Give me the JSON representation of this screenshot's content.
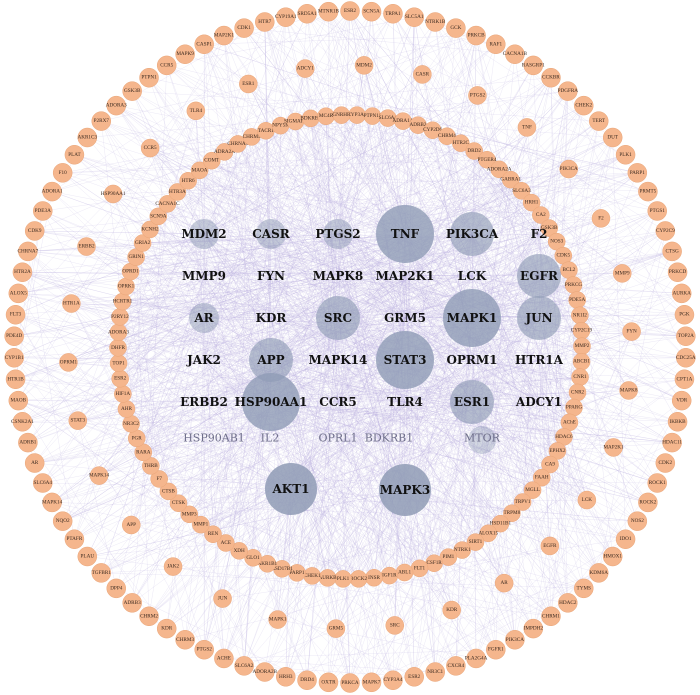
{
  "outer_ring": [
    "ESR2",
    "SCN5A",
    "TRPA1",
    "SLC5A1",
    "NTRK1B",
    "GCK",
    "PRKCB",
    "RAF1",
    "CACNA1B",
    "RASGRP1",
    "CCKBR",
    "PDGFRA",
    "CHEK2",
    "TERT",
    "DUT",
    "PLK1",
    "PARP1",
    "PRMT5",
    "PTGS1",
    "CYP2C9",
    "CTSG",
    "PRKCD",
    "AURKA",
    "PGK",
    "TOP2A",
    "CDC25A",
    "CPT1A",
    "VDR",
    "IKBKB",
    "HDAC11",
    "CDK2",
    "ROCK1",
    "ROCK2",
    "NOS2",
    "IDO1",
    "HMOX1",
    "KDM6A",
    "TYMS",
    "HDAC2",
    "CHRM1",
    "IMPDH2",
    "PIK3CA",
    "FGFR1",
    "PLA2G4A",
    "CXCR4",
    "NR3C1",
    "ESR2",
    "CYP3A4",
    "MAPK7",
    "PRKCA",
    "OXTR",
    "DRD4",
    "HRH3",
    "ADORA2B",
    "SLC6A2",
    "ACHE",
    "PTGS2",
    "CHRM3",
    "KDR",
    "CHRM2",
    "ADRB3",
    "DPP4",
    "TGFBR1",
    "PLAU",
    "PTAFR",
    "NQO2",
    "MAPK14",
    "SLC6A4",
    "AR",
    "ADRB1",
    "CSNK2A1",
    "MAOB",
    "HTR1B",
    "CYP1B1",
    "PDE4D",
    "FLT3",
    "ALOX5",
    "HTR2A",
    "CHRNA7",
    "CDK9",
    "PDE3A",
    "ADORA1",
    "F10",
    "PLAT",
    "AKR1C3",
    "P2RX7",
    "ADORA3",
    "GSK3B",
    "PTPN1",
    "CCR5",
    "MAPK9",
    "CASP1",
    "MAP2K1",
    "CDK1",
    "HTR7",
    "CYP19A1",
    "SRD5A1",
    "MTNR1B"
  ],
  "middle_ring": [
    "MDM2",
    "CASR",
    "PTGS2",
    "TNF",
    "PIK3CA",
    "F2",
    "MMP9",
    "FYN",
    "MAPK8",
    "MAP2K1",
    "LCK",
    "EGFR",
    "AR",
    "KDR",
    "SRC",
    "GRM5",
    "MAPK1",
    "JUN",
    "JAK2",
    "APP",
    "MAPK14",
    "STAT3",
    "OPRM1",
    "HTR1A",
    "ERBB2",
    "HSP90AA1",
    "CCR5",
    "TLR4",
    "ESR1",
    "ADCY1"
  ],
  "inner_ring": [
    "CYP3A4",
    "PTPN11",
    "SLC6A4",
    "ADRA1A",
    "ADRB2",
    "CYP2D6",
    "CHRM4",
    "HTR2C",
    "DRD2",
    "PTGER4",
    "ADORA2A",
    "GABRA1",
    "SLC6A3",
    "HRH1",
    "CA2",
    "GSK3B",
    "NOS3",
    "CDK5",
    "BCL2",
    "PRKCG",
    "PDE5A",
    "NR1I2",
    "CYP2C19",
    "MMP2",
    "ABCB1",
    "CNR1",
    "CNR2",
    "PPARG",
    "AChE",
    "HDAC6",
    "EPHX2",
    "CA9",
    "FAAH",
    "MGLL",
    "TRPV1",
    "TRPM8",
    "HSD11B1",
    "ALOX15",
    "SIRT1",
    "NTRK1",
    "PIM1",
    "CSF1R",
    "FLT1",
    "ABL1",
    "IGF1R",
    "INSR",
    "ROCK2",
    "PLK1",
    "AURKB",
    "CHEK1",
    "PARP1",
    "HSD17B1",
    "AKR1B1",
    "GLO1",
    "XDH",
    "ACE",
    "REN",
    "MMP1",
    "MMP3",
    "CTSK",
    "CTSB",
    "F7",
    "THRB",
    "RARA",
    "PGR",
    "NR3C2",
    "AHR",
    "HIF1A",
    "ESR2",
    "TOP1",
    "DHFR",
    "ADORA3",
    "P2RY12",
    "HCRTR1",
    "OPRK1",
    "OPRD1",
    "GRIN1",
    "GRIA2",
    "KCNH2",
    "SCN9A",
    "CACNA1C",
    "HTR3A",
    "HTR6",
    "MAOA",
    "COMT",
    "ADRA2A",
    "CHRNA4",
    "CHRM5",
    "TACR1",
    "NPY5R",
    "SIGMAR1",
    "BDKRB2",
    "MC4R",
    "GNRHR"
  ],
  "hub_nodes": [
    {
      "label": "TNF",
      "weight": 3
    },
    {
      "label": "EGFR",
      "weight": 2
    },
    {
      "label": "MAPK1",
      "weight": 3
    },
    {
      "label": "SRC",
      "weight": 2
    },
    {
      "label": "STAT3",
      "weight": 3
    },
    {
      "label": "HSP90AA1",
      "weight": 3
    },
    {
      "label": "APP",
      "weight": 2
    },
    {
      "label": "JUN",
      "weight": 2
    },
    {
      "label": "ESR1",
      "weight": 2
    },
    {
      "label": "PIK3CA",
      "weight": 2
    },
    {
      "label": "PTGS2",
      "weight": 1
    },
    {
      "label": "CASR",
      "weight": 1
    },
    {
      "label": "AR",
      "weight": 1
    },
    {
      "label": "MDM2",
      "weight": 1
    }
  ],
  "bottom_row": [
    "HSP90AB1",
    "IL2",
    "OPRL1",
    "BDKRB1",
    "MTOR"
  ],
  "big_hubs": [
    "AKT1",
    "MAPK3"
  ],
  "colors": {
    "edge": "#b9aede",
    "outer_node": "#f5b68d",
    "hub_node": "#8f9bb5",
    "background": "#ffffff"
  }
}
